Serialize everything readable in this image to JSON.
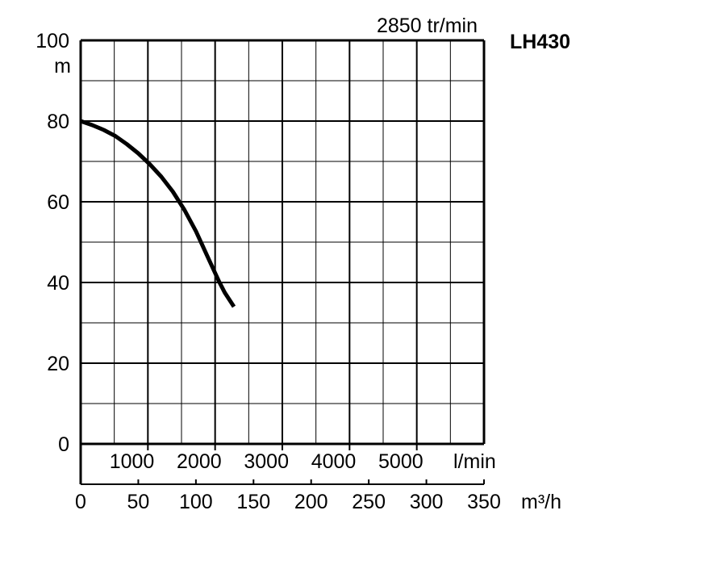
{
  "chart_data": {
    "type": "line",
    "model": "LH430",
    "speed_label": "2850 tr/min",
    "y_unit": "m",
    "y_ticks": [
      "100",
      "80",
      "60",
      "40",
      "20",
      "0"
    ],
    "ylim": [
      0,
      100
    ],
    "lpm_ticks": [
      "1000",
      "2000",
      "3000",
      "4000",
      "5000"
    ],
    "lpm_unit": "l/min",
    "m3h_ticks": [
      "0",
      "50",
      "100",
      "150",
      "200",
      "250",
      "300",
      "350"
    ],
    "m3h_unit": "m³/h",
    "xlim": [
      0,
      350
    ],
    "grid": true,
    "series": [
      {
        "x": [
          0,
          10,
          20,
          30,
          40,
          50,
          60,
          70,
          80,
          90,
          100,
          110,
          120,
          125,
          133
        ],
        "y": [
          80,
          79,
          77.8,
          76.3,
          74.3,
          72,
          69.3,
          66.2,
          62.5,
          58,
          52.7,
          46.5,
          40.3,
          37.5,
          34
        ]
      }
    ]
  }
}
